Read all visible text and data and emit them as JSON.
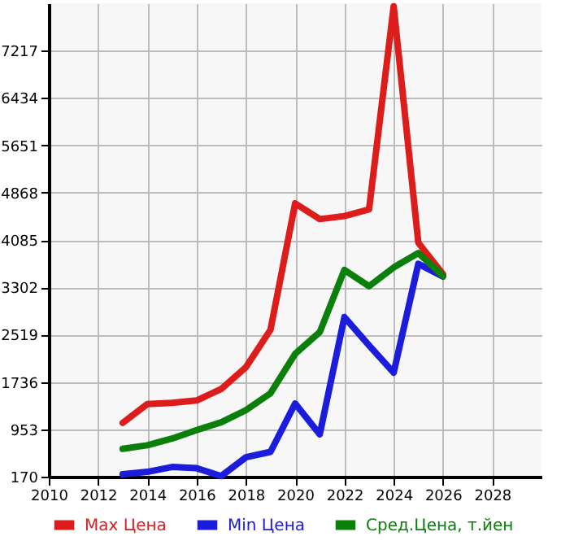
{
  "chart_data": {
    "type": "line",
    "x": [
      2013,
      2014,
      2015,
      2016,
      2017,
      2018,
      2019,
      2020,
      2021,
      2022,
      2023,
      2024,
      2025,
      2026
    ],
    "series": [
      {
        "name": "Max Цена",
        "color": "#dd1c1c",
        "values": [
          1060,
          1370,
          1390,
          1430,
          1620,
          1980,
          2600,
          4690,
          4430,
          4480,
          4590,
          7950,
          4040,
          3520
        ]
      },
      {
        "name": "Min Цена",
        "color": "#1c1cdd",
        "values": [
          210,
          250,
          330,
          310,
          180,
          490,
          580,
          1380,
          870,
          2810,
          2340,
          1890,
          3690,
          3480
        ]
      },
      {
        "name": "Сред.Цена, т.йен",
        "color": "#0a800a",
        "values": [
          630,
          690,
          800,
          940,
          1070,
          1270,
          1550,
          2200,
          2560,
          3590,
          3320,
          3630,
          3870,
          3490
        ]
      }
    ],
    "xlim": [
      2010,
      2030
    ],
    "xticks": [
      2010,
      2012,
      2014,
      2016,
      2018,
      2020,
      2022,
      2024,
      2026,
      2028
    ],
    "ylim": [
      170,
      8000
    ],
    "yticks": [
      170,
      953,
      1736,
      2519,
      3302,
      4085,
      4868,
      5651,
      6434,
      7217
    ],
    "grid": true,
    "legend": "bottom",
    "marker": "none",
    "line_style": "solid"
  }
}
